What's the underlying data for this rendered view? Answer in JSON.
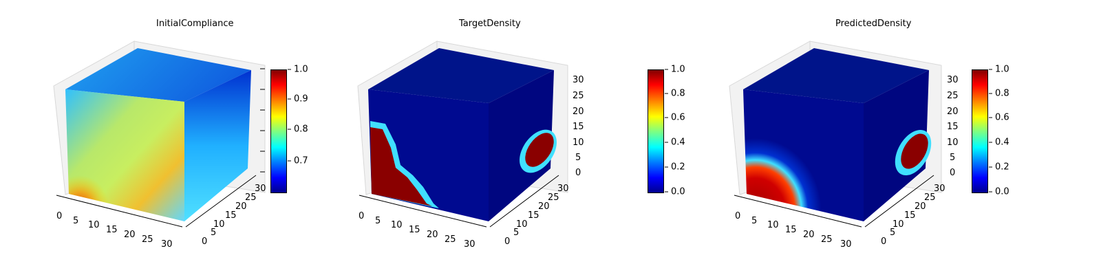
{
  "chart_data": [
    {
      "type": "heatmap",
      "title": "InitialCompliance",
      "x_ticks": [
        "0",
        "5",
        "10",
        "15",
        "20",
        "25",
        "30"
      ],
      "y_ticks": [
        "0",
        "5",
        "10",
        "15",
        "20",
        "25",
        "30"
      ],
      "z_ticks": [],
      "colorbar": {
        "ticks": [
          "0.7",
          "0.8",
          "0.9",
          "1.0"
        ],
        "range": [
          0.62,
          1.0
        ],
        "colormap": "jet"
      }
    },
    {
      "type": "heatmap",
      "title": "TargetDensity",
      "x_ticks": [
        "0",
        "5",
        "10",
        "15",
        "20",
        "25",
        "30"
      ],
      "y_ticks": [
        "0",
        "5",
        "10",
        "15",
        "20",
        "25",
        "30"
      ],
      "z_ticks": [
        "0",
        "5",
        "10",
        "15",
        "20",
        "25",
        "30"
      ],
      "colorbar": {
        "ticks": [
          "0.0",
          "0.2",
          "0.4",
          "0.6",
          "0.8",
          "1.0"
        ],
        "range": [
          0.0,
          1.0
        ],
        "colormap": "jet"
      }
    },
    {
      "type": "heatmap",
      "title": "PredictedDensity",
      "x_ticks": [
        "0",
        "5",
        "10",
        "15",
        "20",
        "25",
        "30"
      ],
      "y_ticks": [
        "0",
        "5",
        "10",
        "15",
        "20",
        "25",
        "30"
      ],
      "z_ticks": [
        "0",
        "5",
        "10",
        "15",
        "20",
        "25",
        "30"
      ],
      "colorbar": {
        "ticks": [
          "0.0",
          "0.2",
          "0.4",
          "0.6",
          "0.8",
          "1.0"
        ],
        "range": [
          0.0,
          1.0
        ],
        "colormap": "jet"
      }
    }
  ]
}
